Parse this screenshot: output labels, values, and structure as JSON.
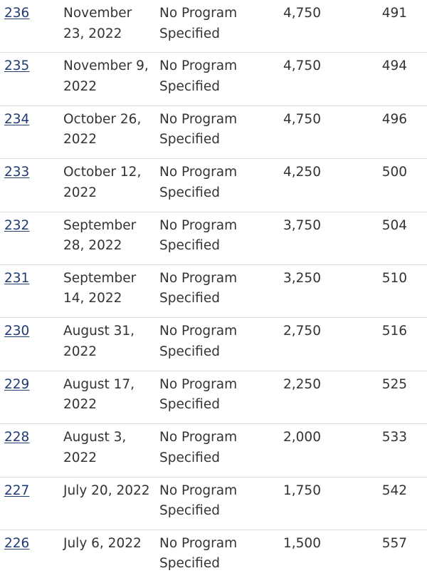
{
  "rows": [
    {
      "draw": "236",
      "date": "November 23, 2022",
      "program": "No Program Specified",
      "crs_cutoff": "4,750",
      "invitations": "491"
    },
    {
      "draw": "235",
      "date": "November 9, 2022",
      "program": "No Program Specified",
      "crs_cutoff": "4,750",
      "invitations": "494"
    },
    {
      "draw": "234",
      "date": "October 26, 2022",
      "program": "No Program Specified",
      "crs_cutoff": "4,750",
      "invitations": "496"
    },
    {
      "draw": "233",
      "date": "October 12, 2022",
      "program": "No Program Specified",
      "crs_cutoff": "4,250",
      "invitations": "500"
    },
    {
      "draw": "232",
      "date": "September 28, 2022",
      "program": "No Program Specified",
      "crs_cutoff": "3,750",
      "invitations": "504"
    },
    {
      "draw": "231",
      "date": "September 14, 2022",
      "program": "No Program Specified",
      "crs_cutoff": "3,250",
      "invitations": "510"
    },
    {
      "draw": "230",
      "date": "August 31, 2022",
      "program": "No Program Specified",
      "crs_cutoff": "2,750",
      "invitations": "516"
    },
    {
      "draw": "229",
      "date": "August 17, 2022",
      "program": "No Program Specified",
      "crs_cutoff": "2,250",
      "invitations": "525"
    },
    {
      "draw": "228",
      "date": "August 3, 2022",
      "program": "No Program Specified",
      "crs_cutoff": "2,000",
      "invitations": "533"
    },
    {
      "draw": "227",
      "date": "July 20, 2022",
      "program": "No Program Specified",
      "crs_cutoff": "1,750",
      "invitations": "542"
    },
    {
      "draw": "226",
      "date": "July 6, 2022",
      "program": "No Program Specified",
      "crs_cutoff": "1,500",
      "invitations": "557"
    }
  ]
}
